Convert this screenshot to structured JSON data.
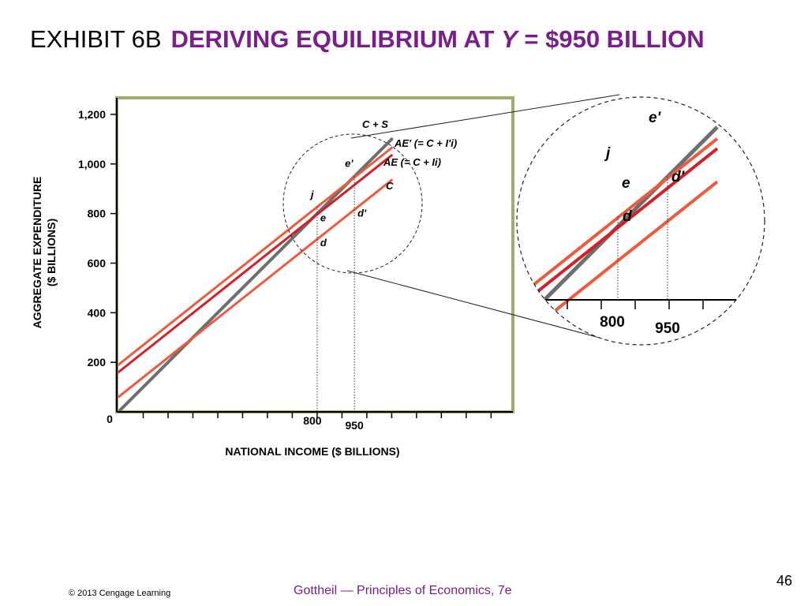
{
  "slide": {
    "exhibit_label": "EXHIBIT 6B",
    "title_part1": "DERIVING EQUILIBRIUM AT",
    "title_var": "Y",
    "title_part2": "= $950 BILLION",
    "page_number": "46",
    "copyright": "© 2013 Cengage Learning",
    "footer": "Gottheil — Principles of Economics, 7e"
  },
  "colors": {
    "title_purple": "#7a1e8c",
    "frame": "#a8a970",
    "gray_line": "#6e6e6e",
    "red_line": "#d41f26",
    "orange_line": "#ee5a3c"
  },
  "chart_data": {
    "type": "line",
    "xlabel": "NATIONAL INCOME ($ BILLIONS)",
    "ylabel_line1": "AGGREGATE EXPENDITURE",
    "ylabel_line2": "($ BILLIONS)",
    "xlim": [
      0,
      1250
    ],
    "ylim": [
      0,
      1250
    ],
    "origin_label": "0",
    "yticks": [
      200,
      400,
      600,
      800,
      1000,
      1200
    ],
    "ytick_labels": [
      "200",
      "400",
      "600",
      "800",
      "1,000",
      "1,200"
    ],
    "xtick_labels": [
      {
        "x": 800,
        "label": "800"
      },
      {
        "x": 950,
        "label": "950"
      }
    ],
    "series": [
      {
        "key": "c_plus_s",
        "label_text": "C + S",
        "color": "#6e6e6e",
        "x": [
          0,
          1100
        ],
        "y": [
          0,
          1100
        ]
      },
      {
        "key": "ae_prime",
        "label_text": "AE' (= C + I'i)",
        "color": "#ee5a3c",
        "x": [
          0,
          1100
        ],
        "y": [
          190,
          1065
        ]
      },
      {
        "key": "ae",
        "label_text": "AE (= C + Ii)",
        "color": "#d41f26",
        "x": [
          0,
          1100
        ],
        "y": [
          160,
          1035
        ]
      },
      {
        "key": "c",
        "label_text": "C",
        "color": "#ee5a3c",
        "x": [
          0,
          1100
        ],
        "y": [
          60,
          935
        ]
      }
    ],
    "points": [
      {
        "label": "j",
        "x": 800,
        "y": 830
      },
      {
        "label": "e",
        "x": 800,
        "y": 800
      },
      {
        "label": "d",
        "x": 800,
        "y": 700
      },
      {
        "label": "e'",
        "x": 950,
        "y": 950
      },
      {
        "label": "d'",
        "x": 950,
        "y": 820
      }
    ],
    "zoom": {
      "x_labels": [
        "800",
        "950"
      ],
      "point_labels": [
        "e'",
        "j",
        "e",
        "d'",
        "d"
      ]
    }
  }
}
